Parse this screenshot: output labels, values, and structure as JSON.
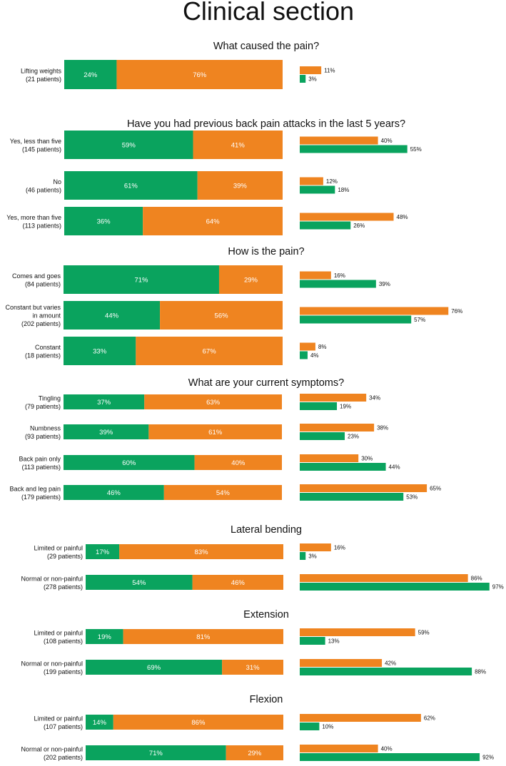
{
  "chart_data": {
    "type": "bar",
    "title": "Clinical section",
    "colors": {
      "green": "#0aa35e",
      "orange": "#ef8420"
    },
    "sections": [
      {
        "title": "What caused the pain?",
        "rows": [
          {
            "label": [
              "Lifting weights",
              "(21 patients)"
            ],
            "split": [
              24,
              76
            ],
            "orange_share": 11,
            "green_share": 3
          }
        ]
      },
      {
        "title": "Have you had previous back pain attacks in the last 5 years?",
        "rows": [
          {
            "label": [
              "Yes, less than five",
              "(145 patients)"
            ],
            "split": [
              59,
              41
            ],
            "orange_share": 40,
            "green_share": 55
          },
          {
            "label": [
              "No",
              "(46 patients)"
            ],
            "split": [
              61,
              39
            ],
            "orange_share": 12,
            "green_share": 18
          },
          {
            "label": [
              "Yes, more than five",
              "(113 patients)"
            ],
            "split": [
              36,
              64
            ],
            "orange_share": 48,
            "green_share": 26
          }
        ]
      },
      {
        "title": "How is the pain?",
        "rows": [
          {
            "label": [
              "Comes and goes",
              "(84 patients)"
            ],
            "split": [
              71,
              29
            ],
            "orange_share": 16,
            "green_share": 39
          },
          {
            "label": [
              "Constant but varies",
              "in amount",
              "(202 patients)"
            ],
            "split": [
              44,
              56
            ],
            "orange_share": 76,
            "green_share": 57
          },
          {
            "label": [
              "Constant",
              "(18 patients)"
            ],
            "split": [
              33,
              67
            ],
            "orange_share": 8,
            "green_share": 4
          }
        ]
      },
      {
        "title": "What are your current symptoms?",
        "rows": [
          {
            "label": [
              "Tingling",
              "(79 patients)"
            ],
            "split": [
              37,
              63
            ],
            "orange_share": 34,
            "green_share": 19
          },
          {
            "label": [
              "Numbness",
              "(93 patients)"
            ],
            "split": [
              39,
              61
            ],
            "orange_share": 38,
            "green_share": 23
          },
          {
            "label": [
              "Back pain only",
              "(113 patients)"
            ],
            "split": [
              60,
              40
            ],
            "orange_share": 30,
            "green_share": 44
          },
          {
            "label": [
              "Back and leg pain",
              "(179 patients)"
            ],
            "split": [
              46,
              54
            ],
            "orange_share": 65,
            "green_share": 53
          }
        ]
      },
      {
        "title": "Lateral bending",
        "rows": [
          {
            "label": [
              "Limited or painful",
              "(29 patients)"
            ],
            "split": [
              17,
              83
            ],
            "orange_share": 16,
            "green_share": 3
          },
          {
            "label": [
              "Normal or non-painful",
              "(278 patients)"
            ],
            "split": [
              54,
              46
            ],
            "orange_share": 86,
            "green_share": 97
          }
        ]
      },
      {
        "title": "Extension",
        "rows": [
          {
            "label": [
              "Limited or painful",
              "(108 patients)"
            ],
            "split": [
              19,
              81
            ],
            "orange_share": 59,
            "green_share": 13
          },
          {
            "label": [
              "Normal or non-painful",
              "(199 patients)"
            ],
            "split": [
              69,
              31
            ],
            "orange_share": 42,
            "green_share": 88
          }
        ]
      },
      {
        "title": "Flexion",
        "rows": [
          {
            "label": [
              "Limited or painful",
              "(107 patients)"
            ],
            "split": [
              14,
              86
            ],
            "orange_share": 62,
            "green_share": 10
          },
          {
            "label": [
              "Normal or non-painful",
              "(202 patients)"
            ],
            "split": [
              71,
              29
            ],
            "orange_share": 40,
            "green_share": 92
          }
        ]
      }
    ]
  }
}
